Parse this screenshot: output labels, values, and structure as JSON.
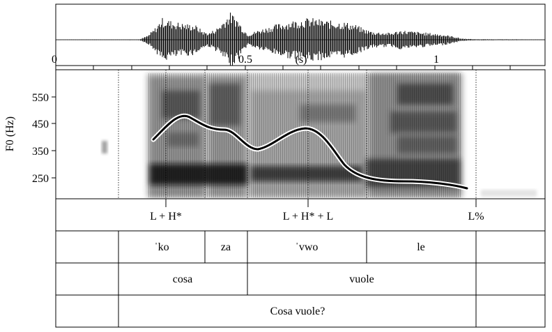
{
  "time_axis": {
    "ticks": [
      "0",
      "0.5",
      "1"
    ],
    "unit": "(s)"
  },
  "f0_axis": {
    "label": "F0 (Hz)",
    "ticks": [
      "550",
      "450",
      "350",
      "250"
    ]
  },
  "tiers": {
    "tones": [
      "L + H*",
      "L + H* + L",
      "L%"
    ],
    "syllables": [
      "ˈko",
      "za",
      "ˈvwo",
      "le"
    ],
    "words": [
      "cosa",
      "vuole"
    ],
    "utterance": "Cosa vuole?"
  },
  "colors": {
    "background": "#ffffff",
    "frame": "#000000",
    "contour": "#000000",
    "contour_halo": "#ffffff"
  },
  "icons": []
}
